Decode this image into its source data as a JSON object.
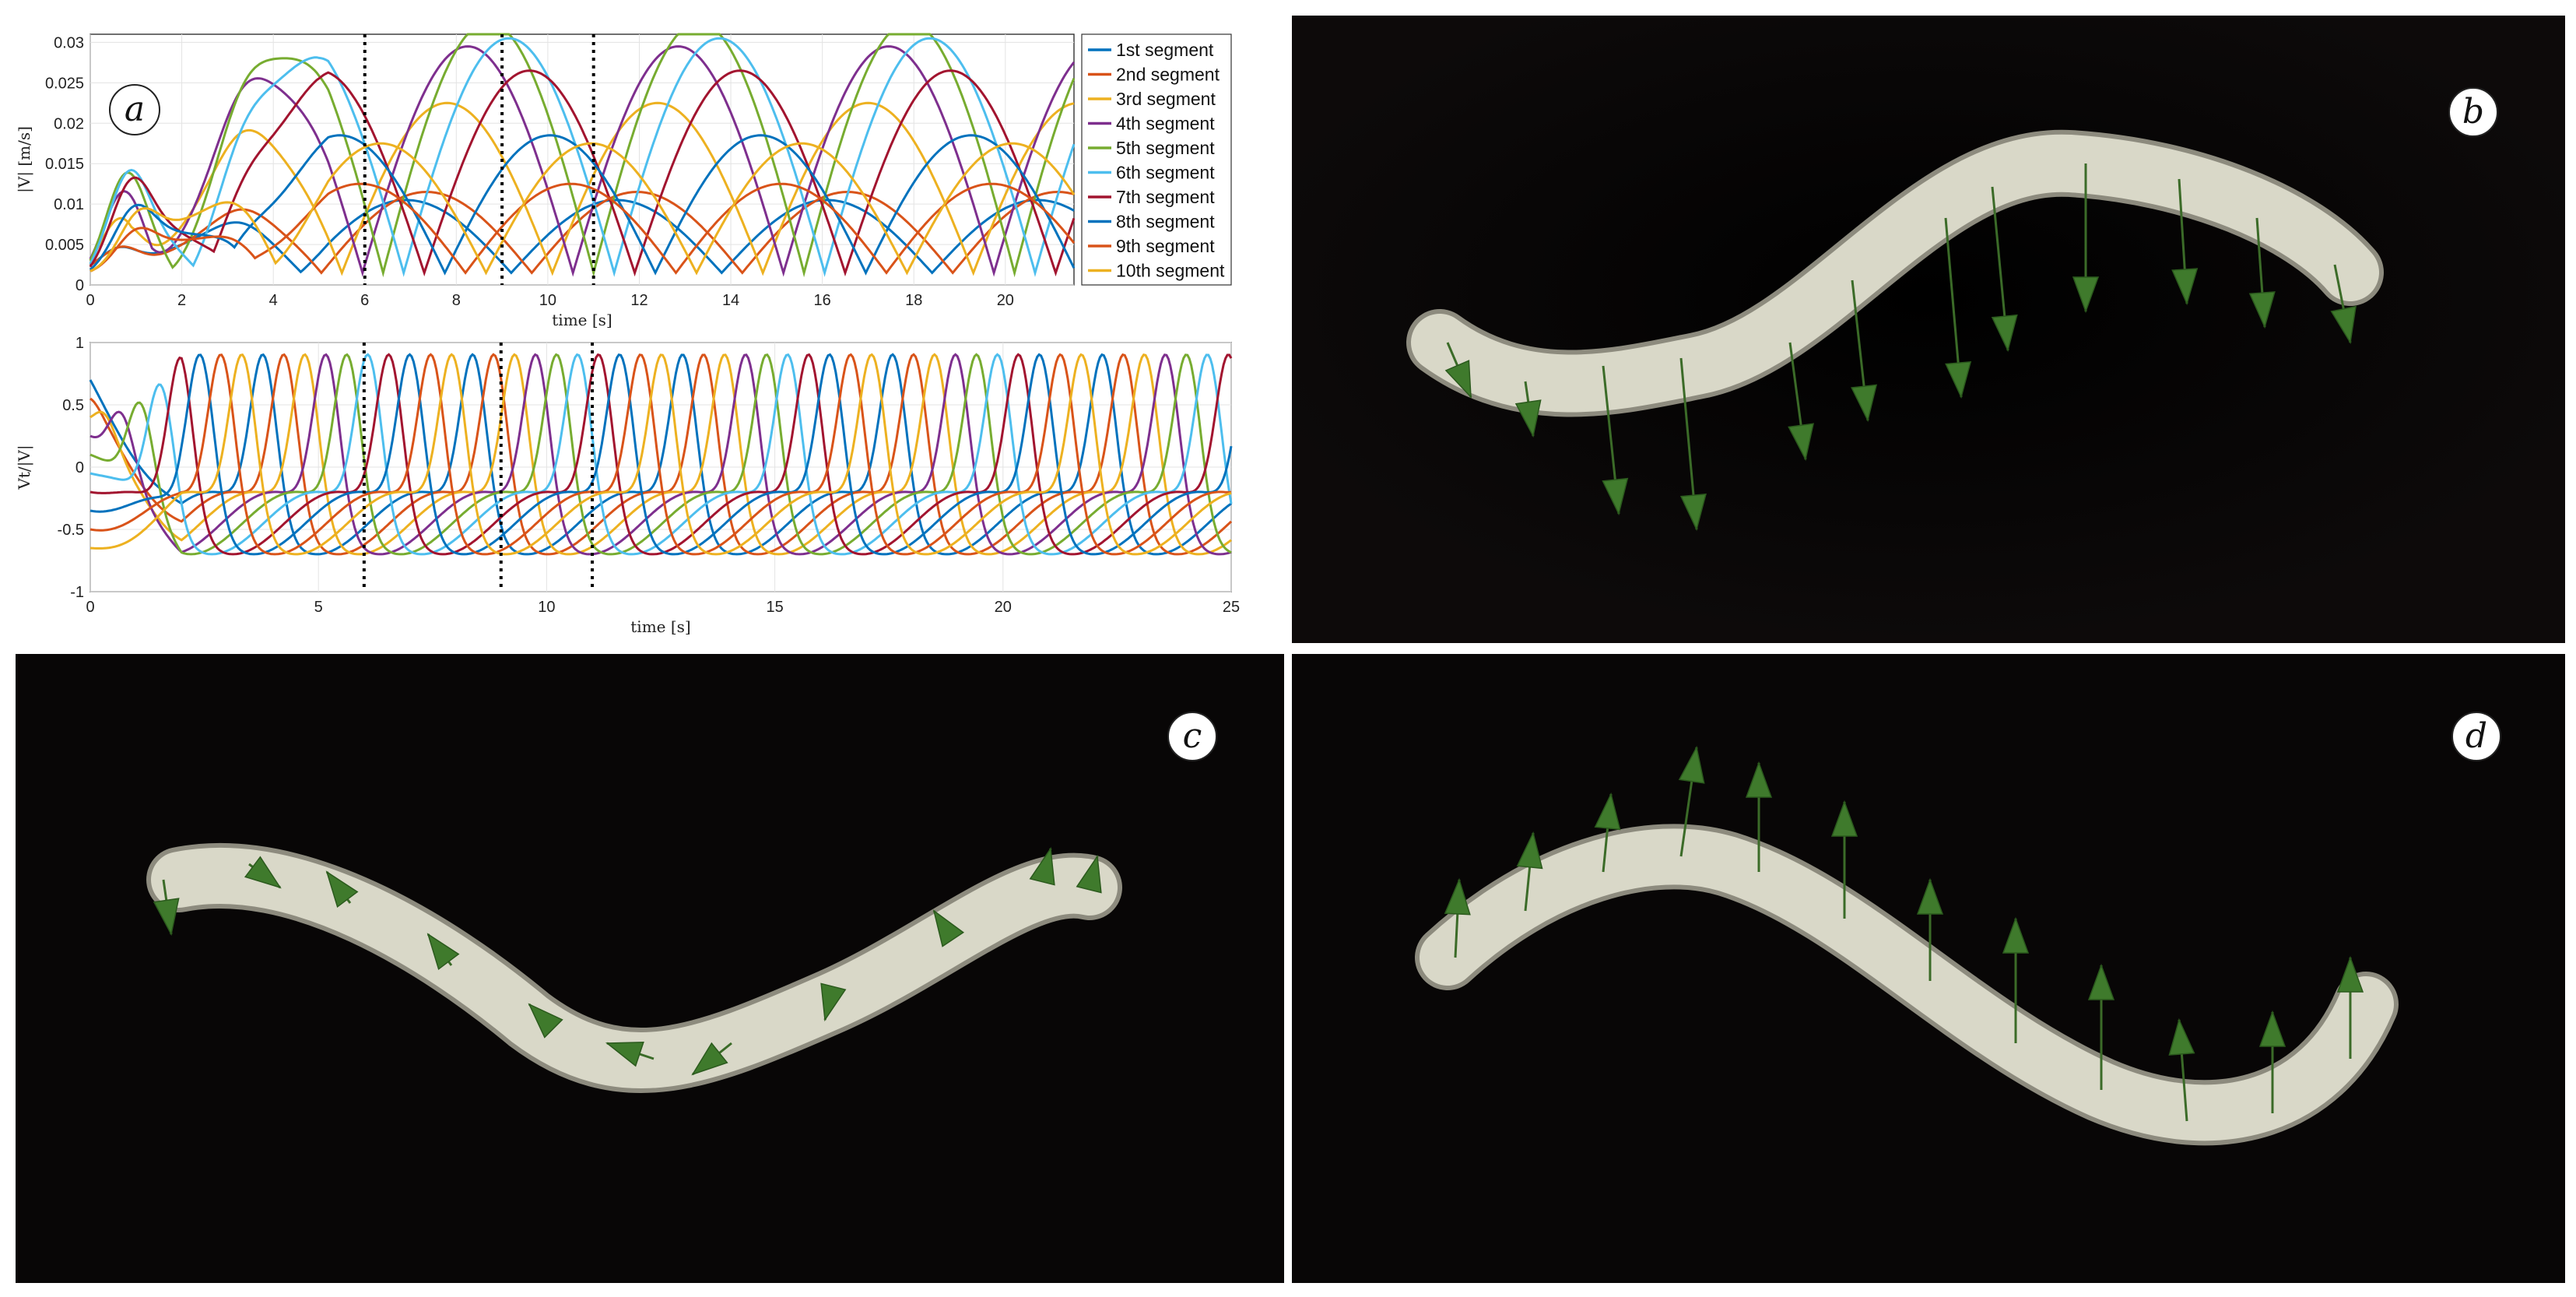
{
  "figure": {
    "panel_labels": [
      "a",
      "b",
      "c",
      "d"
    ]
  },
  "chart_data": [
    {
      "type": "line",
      "xlabel": "time [s]",
      "ylabel": "|V| [m/s]",
      "xlim": [
        0,
        21.5
      ],
      "ylim": [
        0,
        0.031
      ],
      "xticks": [
        0,
        2,
        4,
        6,
        8,
        10,
        12,
        14,
        16,
        18,
        20
      ],
      "yticks": [
        0,
        0.005,
        0.01,
        0.015,
        0.02,
        0.025,
        0.03
      ],
      "ytick_labels": [
        "0",
        "0.005",
        "0.01",
        "0.015",
        "0.02",
        "0.025",
        "0.03"
      ],
      "grid": true,
      "legend_position": "right",
      "vlines": [
        6,
        9,
        11
      ],
      "series": [
        {
          "name": "1st segment",
          "color": "#0072BD"
        },
        {
          "name": "2nd segment",
          "color": "#D95319"
        },
        {
          "name": "3rd segment",
          "color": "#EDB120"
        },
        {
          "name": "4th segment",
          "color": "#7E2F8E"
        },
        {
          "name": "5th segment",
          "color": "#77AC30"
        },
        {
          "name": "6th segment",
          "color": "#4DBEEE"
        },
        {
          "name": "7th segment",
          "color": "#A2142F"
        },
        {
          "name": "8th segment",
          "color": "#0072BD"
        },
        {
          "name": "9th segment",
          "color": "#D95319"
        },
        {
          "name": "10th segment",
          "color": "#EDB120"
        }
      ],
      "amplitudes": [
        0.009,
        0.01,
        0.021,
        0.028,
        0.031,
        0.029,
        0.025,
        0.017,
        0.011,
        0.016
      ],
      "period_s": 4.6
    },
    {
      "type": "line",
      "xlabel": "time [s]",
      "ylabel": "Vt/|V|",
      "xlim": [
        0,
        25
      ],
      "ylim": [
        -1,
        1
      ],
      "xticks": [
        0,
        5,
        10,
        15,
        20,
        25
      ],
      "yticks": [
        -1,
        -0.5,
        0,
        0.5,
        1
      ],
      "ytick_labels": [
        "-1",
        "-0.5",
        "0",
        "0.5",
        "1"
      ],
      "grid": true,
      "vlines": [
        6,
        9,
        11
      ],
      "period_s": 4.6
    }
  ],
  "colors": {
    "snake_body": "#d9d8c8",
    "arrow": "#3f7a2c",
    "background_3d": "#080606"
  }
}
